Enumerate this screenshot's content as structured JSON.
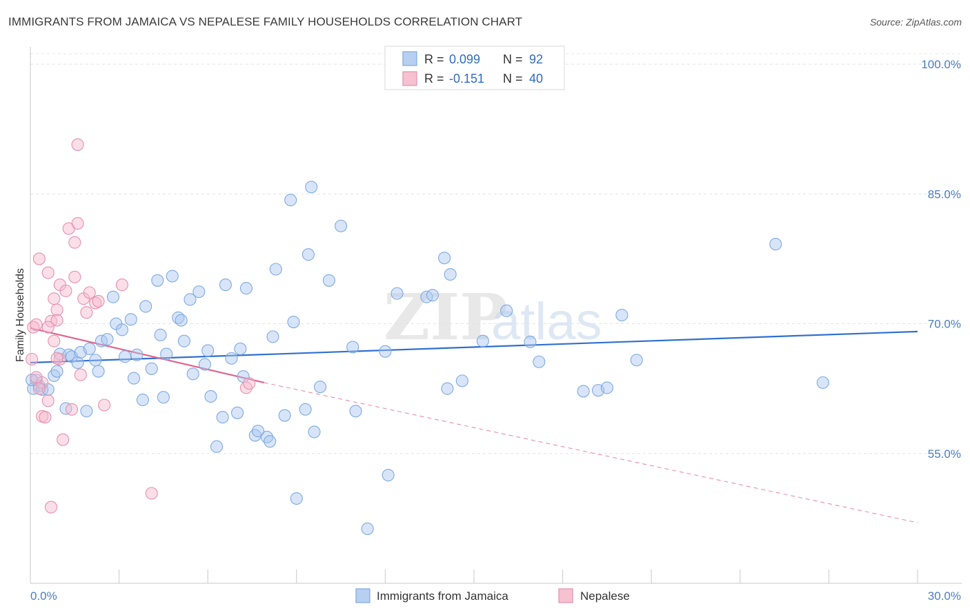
{
  "title": "IMMIGRANTS FROM JAMAICA VS NEPALESE FAMILY HOUSEHOLDS CORRELATION CHART",
  "source": "Source: ZipAtlas.com",
  "watermark": {
    "zip": "ZIP",
    "atlas": "atlas"
  },
  "legend": {
    "r_label": "R =",
    "n_label": "N =",
    "series": [
      {
        "r": "0.099",
        "n": "92",
        "color": "#7ea9e1",
        "fill": "#b7cff0"
      },
      {
        "r": "-0.151",
        "n": "40",
        "color": "#e78fab",
        "fill": "#f6c1d1"
      }
    ]
  },
  "bottom_legend": [
    "Immigrants from Jamaica",
    "Nepalese"
  ],
  "chart_data": {
    "type": "scatter",
    "title": "IMMIGRANTS FROM JAMAICA VS NEPALESE FAMILY HOUSEHOLDS CORRELATION CHART",
    "xlabel": "",
    "ylabel": "Family Households",
    "xlim": [
      0,
      30
    ],
    "ylim": [
      40,
      102
    ],
    "x_tick_labels": [
      "0.0%",
      "30.0%"
    ],
    "y_ticks": [
      55,
      70,
      85,
      100
    ],
    "y_tick_labels": [
      "55.0%",
      "70.0%",
      "85.0%",
      "100.0%"
    ],
    "grid": true,
    "series": [
      {
        "name": "Immigrants from Jamaica",
        "color": "#7ea9e1",
        "trend": {
          "x": [
            0,
            30
          ],
          "y": [
            65.5,
            69.1
          ],
          "color": "#2f6fcf"
        },
        "points": [
          [
            0.1,
            62.5
          ],
          [
            0.2,
            63.5
          ],
          [
            0.3,
            62.8
          ],
          [
            0.4,
            62.4
          ],
          [
            0.6,
            62.4
          ],
          [
            0.8,
            64.0
          ],
          [
            0.9,
            64.5
          ],
          [
            1.0,
            66.5
          ],
          [
            1.2,
            60.2
          ],
          [
            1.3,
            66.4
          ],
          [
            1.4,
            66.2
          ],
          [
            1.6,
            65.5
          ],
          [
            1.7,
            66.7
          ],
          [
            1.9,
            59.9
          ],
          [
            2.0,
            67.1
          ],
          [
            2.2,
            65.8
          ],
          [
            2.3,
            64.5
          ],
          [
            2.4,
            68.0
          ],
          [
            2.6,
            68.2
          ],
          [
            2.8,
            73.1
          ],
          [
            2.9,
            70.0
          ],
          [
            3.1,
            69.3
          ],
          [
            3.2,
            66.2
          ],
          [
            3.4,
            70.5
          ],
          [
            3.5,
            63.7
          ],
          [
            3.6,
            66.4
          ],
          [
            3.8,
            61.2
          ],
          [
            3.9,
            72.0
          ],
          [
            4.1,
            64.8
          ],
          [
            4.3,
            75.0
          ],
          [
            4.4,
            68.7
          ],
          [
            4.5,
            61.5
          ],
          [
            4.6,
            66.5
          ],
          [
            4.8,
            75.5
          ],
          [
            5.0,
            70.7
          ],
          [
            5.1,
            70.4
          ],
          [
            5.2,
            68.0
          ],
          [
            5.4,
            72.8
          ],
          [
            5.5,
            64.2
          ],
          [
            5.7,
            73.7
          ],
          [
            5.9,
            65.3
          ],
          [
            6.0,
            66.9
          ],
          [
            6.1,
            61.6
          ],
          [
            6.3,
            55.8
          ],
          [
            6.5,
            59.2
          ],
          [
            6.6,
            74.5
          ],
          [
            6.8,
            66.0
          ],
          [
            7.0,
            59.7
          ],
          [
            7.1,
            67.1
          ],
          [
            7.2,
            63.9
          ],
          [
            7.3,
            74.1
          ],
          [
            7.6,
            57.1
          ],
          [
            7.7,
            57.6
          ],
          [
            8.0,
            56.9
          ],
          [
            8.1,
            56.4
          ],
          [
            8.2,
            68.5
          ],
          [
            8.3,
            76.3
          ],
          [
            8.6,
            59.4
          ],
          [
            8.8,
            84.3
          ],
          [
            8.9,
            70.2
          ],
          [
            9.0,
            49.8
          ],
          [
            9.3,
            60.1
          ],
          [
            9.4,
            78.0
          ],
          [
            9.5,
            85.8
          ],
          [
            9.6,
            57.5
          ],
          [
            9.8,
            62.7
          ],
          [
            10.1,
            75.0
          ],
          [
            10.5,
            81.3
          ],
          [
            10.9,
            67.3
          ],
          [
            11.0,
            59.9
          ],
          [
            11.4,
            46.3
          ],
          [
            12.0,
            66.8
          ],
          [
            12.1,
            52.5
          ],
          [
            12.4,
            73.5
          ],
          [
            13.4,
            73.1
          ],
          [
            13.6,
            73.3
          ],
          [
            14.0,
            77.6
          ],
          [
            14.1,
            62.5
          ],
          [
            14.2,
            75.7
          ],
          [
            14.6,
            63.4
          ],
          [
            15.3,
            68.0
          ],
          [
            16.1,
            71.5
          ],
          [
            16.9,
            67.9
          ],
          [
            17.2,
            65.6
          ],
          [
            18.7,
            62.2
          ],
          [
            19.2,
            62.3
          ],
          [
            19.5,
            62.6
          ],
          [
            20.0,
            71.0
          ],
          [
            20.5,
            65.8
          ],
          [
            25.2,
            79.2
          ],
          [
            26.8,
            63.2
          ],
          [
            0.05,
            63.5
          ]
        ]
      },
      {
        "name": "Nepalese",
        "color": "#e78fab",
        "trend": {
          "x": [
            0,
            7.9
          ],
          "y": [
            69.5,
            63.2
          ],
          "color": "#e0648c",
          "dash_x": [
            7.9,
            30
          ],
          "dash_y": [
            63.2,
            47.0
          ]
        },
        "points": [
          [
            0.05,
            65.9
          ],
          [
            0.1,
            69.6
          ],
          [
            0.2,
            69.9
          ],
          [
            0.3,
            77.5
          ],
          [
            0.4,
            63.2
          ],
          [
            0.4,
            59.3
          ],
          [
            0.5,
            59.2
          ],
          [
            0.6,
            61.1
          ],
          [
            0.6,
            75.9
          ],
          [
            0.7,
            48.8
          ],
          [
            0.7,
            70.3
          ],
          [
            0.8,
            68.0
          ],
          [
            0.8,
            72.9
          ],
          [
            0.9,
            71.6
          ],
          [
            0.9,
            70.4
          ],
          [
            1.0,
            74.5
          ],
          [
            1.0,
            65.9
          ],
          [
            1.1,
            56.6
          ],
          [
            1.2,
            73.8
          ],
          [
            1.3,
            81.0
          ],
          [
            1.4,
            60.1
          ],
          [
            1.5,
            75.4
          ],
          [
            1.5,
            79.4
          ],
          [
            1.6,
            90.7
          ],
          [
            1.6,
            81.6
          ],
          [
            1.7,
            64.1
          ],
          [
            1.8,
            72.9
          ],
          [
            1.9,
            71.3
          ],
          [
            2.0,
            73.6
          ],
          [
            2.2,
            72.4
          ],
          [
            2.3,
            72.6
          ],
          [
            2.5,
            60.6
          ],
          [
            3.1,
            74.5
          ],
          [
            4.1,
            50.4
          ],
          [
            7.3,
            62.6
          ],
          [
            7.4,
            63.1
          ],
          [
            0.3,
            62.5
          ],
          [
            0.2,
            63.8
          ],
          [
            0.9,
            66.0
          ],
          [
            0.6,
            69.6
          ]
        ]
      }
    ]
  }
}
